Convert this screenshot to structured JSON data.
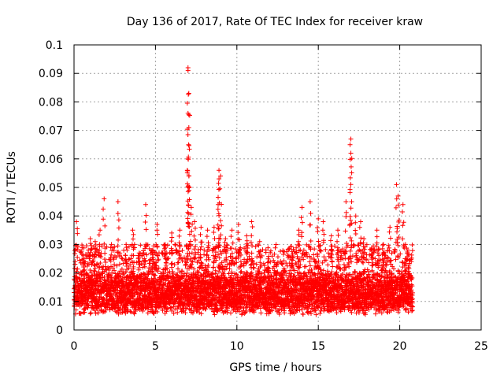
{
  "chart_data": {
    "type": "scatter",
    "title": "Day 136 of 2017, Rate Of TEC Index for receiver kraw",
    "xlabel": "GPS time / hours",
    "ylabel": "ROTI / TECUs",
    "xlim": [
      0,
      25
    ],
    "ylim": [
      0,
      0.1
    ],
    "x_ticks": [
      "0",
      "5",
      "10",
      "15",
      "20",
      "25"
    ],
    "y_ticks": [
      "0",
      "0.01",
      "0.02",
      "0.03",
      "0.04",
      "0.05",
      "0.06",
      "0.07",
      "0.08",
      "0.09",
      "0.1"
    ],
    "grid": true,
    "marker": "plus",
    "color": "#ff0000",
    "x_data_range": [
      0,
      20.8
    ],
    "baseline_band": [
      0.005,
      0.02
    ],
    "spikes": [
      {
        "x": 0.15,
        "y": 0.038
      },
      {
        "x": 0.6,
        "y": 0.025
      },
      {
        "x": 1.0,
        "y": 0.032
      },
      {
        "x": 1.3,
        "y": 0.031
      },
      {
        "x": 1.6,
        "y": 0.035
      },
      {
        "x": 1.85,
        "y": 0.046
      },
      {
        "x": 2.3,
        "y": 0.03
      },
      {
        "x": 2.7,
        "y": 0.045
      },
      {
        "x": 3.2,
        "y": 0.03
      },
      {
        "x": 3.6,
        "y": 0.035
      },
      {
        "x": 4.0,
        "y": 0.027
      },
      {
        "x": 4.4,
        "y": 0.044
      },
      {
        "x": 4.8,
        "y": 0.028
      },
      {
        "x": 5.1,
        "y": 0.037
      },
      {
        "x": 5.6,
        "y": 0.03
      },
      {
        "x": 6.0,
        "y": 0.034
      },
      {
        "x": 6.5,
        "y": 0.035
      },
      {
        "x": 7.0,
        "y": 0.092
      },
      {
        "x": 7.0,
        "y": 0.091
      },
      {
        "x": 7.05,
        "y": 0.083
      },
      {
        "x": 7.0,
        "y": 0.076
      },
      {
        "x": 7.05,
        "y": 0.071
      },
      {
        "x": 7.0,
        "y": 0.06
      },
      {
        "x": 7.05,
        "y": 0.054
      },
      {
        "x": 7.2,
        "y": 0.043
      },
      {
        "x": 7.4,
        "y": 0.038
      },
      {
        "x": 7.8,
        "y": 0.036
      },
      {
        "x": 8.2,
        "y": 0.035
      },
      {
        "x": 8.6,
        "y": 0.036
      },
      {
        "x": 8.9,
        "y": 0.056
      },
      {
        "x": 8.9,
        "y": 0.053
      },
      {
        "x": 9.0,
        "y": 0.054
      },
      {
        "x": 8.85,
        "y": 0.044
      },
      {
        "x": 9.3,
        "y": 0.032
      },
      {
        "x": 9.7,
        "y": 0.035
      },
      {
        "x": 10.1,
        "y": 0.037
      },
      {
        "x": 10.6,
        "y": 0.033
      },
      {
        "x": 10.9,
        "y": 0.038
      },
      {
        "x": 11.4,
        "y": 0.031
      },
      {
        "x": 11.9,
        "y": 0.022
      },
      {
        "x": 12.4,
        "y": 0.02
      },
      {
        "x": 12.9,
        "y": 0.021
      },
      {
        "x": 13.4,
        "y": 0.026
      },
      {
        "x": 13.8,
        "y": 0.035
      },
      {
        "x": 14.0,
        "y": 0.043
      },
      {
        "x": 14.5,
        "y": 0.045
      },
      {
        "x": 15.0,
        "y": 0.039
      },
      {
        "x": 15.3,
        "y": 0.038
      },
      {
        "x": 15.8,
        "y": 0.033
      },
      {
        "x": 16.2,
        "y": 0.035
      },
      {
        "x": 16.7,
        "y": 0.045
      },
      {
        "x": 17.0,
        "y": 0.067
      },
      {
        "x": 16.95,
        "y": 0.065
      },
      {
        "x": 17.0,
        "y": 0.062
      },
      {
        "x": 17.3,
        "y": 0.04
      },
      {
        "x": 17.6,
        "y": 0.038
      },
      {
        "x": 17.8,
        "y": 0.032
      },
      {
        "x": 18.3,
        "y": 0.028
      },
      {
        "x": 18.6,
        "y": 0.035
      },
      {
        "x": 19.0,
        "y": 0.03
      },
      {
        "x": 19.4,
        "y": 0.036
      },
      {
        "x": 19.8,
        "y": 0.051
      },
      {
        "x": 19.9,
        "y": 0.047
      },
      {
        "x": 20.2,
        "y": 0.044
      },
      {
        "x": 20.5,
        "y": 0.028
      }
    ]
  }
}
